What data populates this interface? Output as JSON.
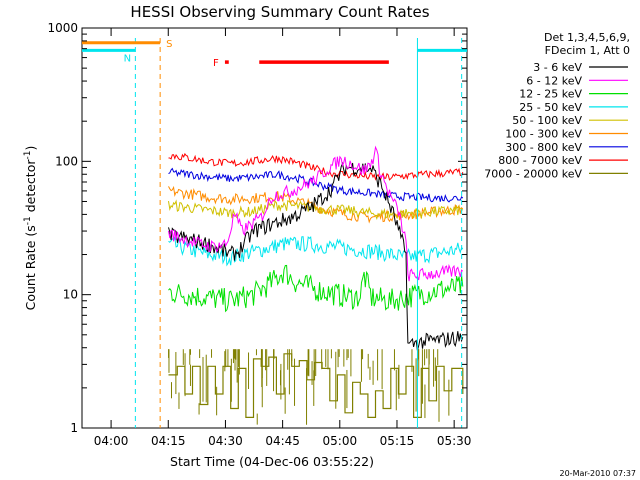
{
  "chart_data": {
    "type": "line",
    "title": "HESSI Observing Summary Count Rates",
    "xlabel": "Start Time (04-Dec-06 03:55:22)",
    "ylabel": "Count Rate (s",
    "ylabel_sup": "-1",
    "ylabel_mid": " detector",
    "ylabel_tail": ")",
    "x_unit": "minutes after 03:55:22",
    "xlim": [
      -3.0,
      98.0
    ],
    "ylim": [
      1,
      1000
    ],
    "y_scale": "log",
    "x_ticks": [
      {
        "label": "04:00",
        "x": 4.63
      },
      {
        "label": "04:15",
        "x": 19.63
      },
      {
        "label": "04:30",
        "x": 34.63
      },
      {
        "label": "04:45",
        "x": 49.63
      },
      {
        "label": "05:00",
        "x": 64.63
      },
      {
        "label": "05:15",
        "x": 79.63
      },
      {
        "label": "05:30",
        "x": 94.63
      }
    ],
    "y_ticks": [
      {
        "label": "1",
        "y": 1
      },
      {
        "label": "10",
        "y": 10
      },
      {
        "label": "100",
        "y": 100
      },
      {
        "label": "1000",
        "y": 1000
      }
    ],
    "legend_header": [
      "Det 1,3,4,5,6,9,",
      "FDecim 1, Att 0"
    ],
    "legend_position": "right, outside plot",
    "grid": false,
    "series": [
      {
        "name": "3 - 6 keV",
        "color": "#000000",
        "x": [
          19.7,
          25,
          30,
          33,
          36,
          38,
          42,
          47,
          52,
          57,
          62,
          64,
          66,
          70,
          73,
          76,
          79,
          82,
          82.5,
          84,
          88,
          92,
          96.9
        ],
        "y": [
          28,
          26,
          24,
          22,
          20,
          21,
          30,
          34,
          38,
          45,
          60,
          75,
          90,
          90,
          88,
          62,
          38,
          20,
          4.2,
          4.3,
          4.5,
          4.6,
          4.8
        ]
      },
      {
        "name": "6 - 12 keV",
        "color": "#ff00ff",
        "x": [
          19.7,
          24,
          28,
          31,
          35,
          37,
          39,
          44,
          47,
          52,
          58,
          62,
          65,
          67,
          71,
          73,
          74,
          75,
          77,
          80,
          82,
          82.5,
          85,
          90,
          96.9
        ],
        "y": [
          29,
          26,
          24,
          23,
          24,
          40,
          30,
          38,
          55,
          60,
          72,
          90,
          103,
          98,
          85,
          98,
          125,
          90,
          62,
          42,
          25,
          14,
          14,
          14.5,
          15
        ]
      },
      {
        "name": "12 - 25 keV",
        "color": "#00e000",
        "x": [
          19.7,
          25,
          30,
          36,
          42,
          47,
          50,
          53,
          58,
          64,
          68,
          70,
          71,
          73,
          78,
          82,
          88,
          92,
          96.9
        ],
        "y": [
          10.5,
          10,
          9.5,
          9,
          10,
          12.5,
          15,
          12.5,
          11,
          10,
          9.5,
          9.8,
          14,
          9.5,
          9,
          9.6,
          10.5,
          11,
          11.5
        ]
      },
      {
        "name": "25 - 50 keV",
        "color": "#00e5ee",
        "x": [
          19.7,
          25,
          30,
          36,
          42,
          50,
          56,
          62,
          68,
          74,
          78,
          82,
          88,
          96.9
        ],
        "y": [
          24,
          22,
          20,
          19,
          21,
          24,
          24,
          23,
          22,
          21,
          20,
          19,
          20,
          22
        ]
      },
      {
        "name": "50 - 100 keV",
        "color": "#d0c000",
        "x": [
          19.7,
          25,
          30,
          36,
          42,
          48,
          54,
          60,
          66,
          72,
          78,
          84,
          90,
          96.9
        ],
        "y": [
          47,
          45,
          43,
          41,
          42,
          47,
          46,
          44,
          43,
          41,
          40,
          41,
          42,
          43
        ]
      },
      {
        "name": "100 - 300 keV",
        "color": "#ff8c00",
        "x": [
          19.7,
          25,
          30,
          36,
          42,
          48,
          54,
          60,
          66,
          72,
          78,
          84,
          90,
          96.9
        ],
        "y": [
          60,
          57,
          54,
          52,
          53,
          55,
          50,
          44,
          40,
          38,
          39,
          40,
          42,
          44
        ]
      },
      {
        "name": "300 - 800 keV",
        "color": "#0000e0",
        "x": [
          19.7,
          25,
          30,
          36,
          42,
          48,
          54,
          60,
          66,
          72,
          78,
          84,
          90,
          96.9
        ],
        "y": [
          83,
          80,
          77,
          74,
          76,
          80,
          74,
          66,
          60,
          58,
          55,
          54,
          53,
          53
        ]
      },
      {
        "name": "800 - 7000 keV",
        "color": "#ff0000",
        "x": [
          19.7,
          25,
          30,
          36,
          42,
          48,
          52,
          58,
          62,
          66,
          70,
          74,
          78,
          82,
          88,
          96.9
        ],
        "y": [
          112,
          106,
          100,
          96,
          100,
          106,
          100,
          88,
          82,
          80,
          78,
          76,
          76,
          78,
          80,
          83
        ]
      },
      {
        "name": "7000 - 20000 keV",
        "color": "#808000",
        "x": [
          19.7,
          22,
          24,
          26,
          28,
          30,
          32,
          34,
          36,
          38,
          40,
          42,
          44,
          46,
          48,
          50,
          52,
          54,
          56,
          58,
          60,
          62,
          64,
          66,
          68,
          70,
          72,
          74,
          76,
          78,
          80,
          82,
          84,
          86,
          88,
          90,
          92,
          94,
          96.9
        ],
        "y": [
          2.5,
          2.9,
          1.8,
          2.9,
          1.5,
          2.9,
          1.8,
          2.9,
          1.4,
          2.8,
          1.2,
          3.3,
          2.9,
          3.4,
          1.8,
          3.6,
          2.9,
          3.2,
          2.3,
          3.1,
          2.8,
          1.6,
          2.5,
          1.3,
          2.2,
          1.8,
          1.2,
          1.9,
          1.4,
          2.8,
          1.8,
          2.9,
          1.2,
          2.8,
          1.6,
          2.9,
          1.9,
          2.8,
          1.8
        ]
      }
    ],
    "spacecraft_lines": [
      {
        "label": "N",
        "color": "#00e5ee",
        "x": 11.0,
        "dashed": true
      },
      {
        "label": "S",
        "color": "#ff8c00",
        "x": 17.5,
        "dashed": true
      },
      {
        "label": "",
        "color": "#00e5ee",
        "x": 85.0,
        "dashed": false
      },
      {
        "label": "",
        "color": "#00e5ee",
        "x": 96.6,
        "dashed": true
      }
    ],
    "night_bars": [
      {
        "label": "N",
        "color": "#00e5ee",
        "x_start": -3.0,
        "x_end": 11.0,
        "y": 680
      },
      {
        "label": "",
        "color": "#00e5ee",
        "x_start": 85.0,
        "x_end": 98.0,
        "y": 680
      }
    ],
    "saa_bar": {
      "label": "S",
      "color": "#ff8c00",
      "x_start": -3.0,
      "x_end": 17.5,
      "y": 775
    },
    "flare_flag": {
      "label": "F",
      "color": "#ff0000",
      "segments": [
        [
          34.5,
          35.5
        ],
        [
          43.5,
          77.5
        ]
      ],
      "y": 555
    },
    "timestamp": "20-Mar-2010 07:37"
  }
}
